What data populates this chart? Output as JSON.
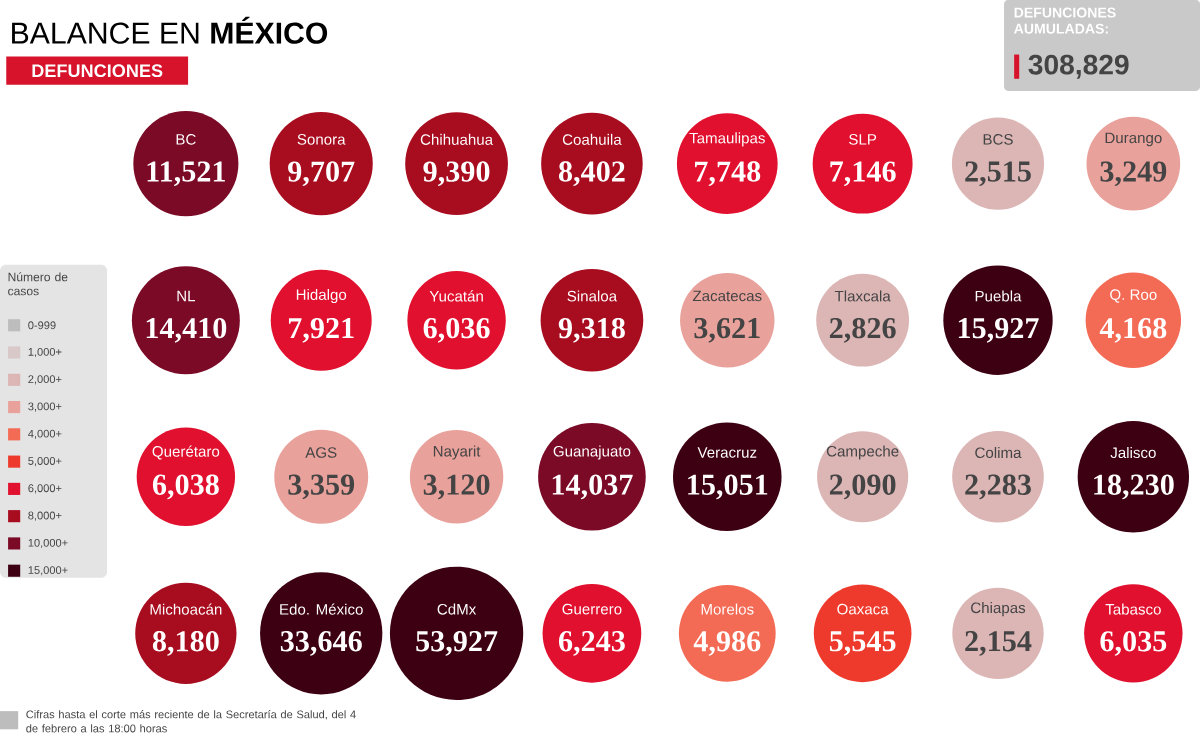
{
  "chart_data": {
    "type": "other",
    "title": "BALANCE EN **MÉXICO**",
    "subtitle": "DEFUNCIONES",
    "legend_title": "Número de casos",
    "legend": "left",
    "categories": [
      "BC",
      "Sonora",
      "Chihuahua",
      "Coahuila",
      "Tamaulipas",
      "SLP",
      "BCS",
      "Durango",
      "NL",
      "Hidalgo",
      "Yucatán",
      "Sinaloa",
      "Zacatecas",
      "Tlaxcala",
      "Puebla",
      "Q. Roo",
      "Querétaro",
      "AGS",
      "Nayarit",
      "Guanajuato",
      "Veracruz",
      "Campeche",
      "Colima",
      "Jalisco",
      "Michoacán",
      "Edo. México",
      "CdMx",
      "Guerrero",
      "Morelos",
      "Oaxaca",
      "Chiapas",
      "Tabasco"
    ],
    "series": [
      {
        "name": "0-999",
        "color": "#bdbdbd",
        "values": [
          null,
          null,
          null,
          null,
          null,
          null,
          null,
          null,
          null,
          null,
          null,
          null,
          null,
          null,
          null,
          null,
          null,
          null,
          null,
          null,
          null,
          null,
          null,
          null,
          null,
          null,
          null,
          null,
          null,
          null,
          null,
          null
        ]
      },
      {
        "name": "1,000+",
        "color": "#d8c8c8",
        "values": [
          null,
          null,
          null,
          null,
          null,
          null,
          null,
          null,
          null,
          null,
          null,
          null,
          null,
          null,
          null,
          null,
          null,
          null,
          null,
          null,
          null,
          null,
          null,
          null,
          null,
          null,
          null,
          null,
          null,
          null,
          null,
          null
        ]
      },
      {
        "name": "2,000+",
        "color": "#dcb5b5",
        "values": [
          null,
          null,
          null,
          null,
          null,
          null,
          2515,
          null,
          null,
          null,
          null,
          null,
          null,
          2826,
          null,
          null,
          null,
          null,
          null,
          null,
          null,
          2090,
          2283,
          null,
          null,
          null,
          null,
          null,
          null,
          null,
          2154,
          null
        ],
        "value_labels": [
          null,
          null,
          null,
          null,
          null,
          null,
          "2,515",
          null,
          null,
          null,
          null,
          null,
          null,
          "2,826",
          null,
          null,
          null,
          null,
          null,
          null,
          null,
          "2,090",
          "2,283",
          null,
          null,
          null,
          null,
          null,
          null,
          null,
          "2,154",
          null
        ]
      },
      {
        "name": "3,000+",
        "color": "#e9a19b",
        "values": [
          null,
          null,
          null,
          null,
          null,
          null,
          null,
          3249,
          null,
          null,
          null,
          null,
          3621,
          null,
          null,
          null,
          null,
          3359,
          3120,
          null,
          null,
          null,
          null,
          null,
          null,
          null,
          null,
          null,
          null,
          null,
          null,
          null
        ],
        "value_labels": [
          null,
          null,
          null,
          null,
          null,
          null,
          null,
          "3,249",
          null,
          null,
          null,
          null,
          "3,621",
          null,
          null,
          null,
          null,
          "3,359",
          "3,120",
          null,
          null,
          null,
          null,
          null,
          null,
          null,
          null,
          null,
          null,
          null,
          null,
          null
        ]
      },
      {
        "name": "4,000+",
        "color": "#f36a55",
        "values": [
          null,
          null,
          null,
          null,
          null,
          null,
          null,
          null,
          null,
          null,
          null,
          null,
          null,
          null,
          null,
          4168,
          null,
          null,
          null,
          null,
          null,
          null,
          null,
          null,
          null,
          null,
          null,
          null,
          4986,
          null,
          null,
          null
        ],
        "value_labels": [
          null,
          null,
          null,
          null,
          null,
          null,
          null,
          null,
          null,
          null,
          null,
          null,
          null,
          null,
          null,
          "4,168",
          null,
          null,
          null,
          null,
          null,
          null,
          null,
          null,
          null,
          null,
          null,
          null,
          "4,986",
          null,
          null,
          null
        ]
      },
      {
        "name": "5,000+",
        "color": "#ee3a2c",
        "values": [
          null,
          null,
          null,
          null,
          null,
          null,
          null,
          null,
          null,
          null,
          null,
          null,
          null,
          null,
          null,
          null,
          null,
          null,
          null,
          null,
          null,
          null,
          null,
          null,
          null,
          null,
          null,
          null,
          null,
          5545,
          null,
          null
        ],
        "value_labels": [
          null,
          null,
          null,
          null,
          null,
          null,
          null,
          null,
          null,
          null,
          null,
          null,
          null,
          null,
          null,
          null,
          null,
          null,
          null,
          null,
          null,
          null,
          null,
          null,
          null,
          null,
          null,
          null,
          null,
          "5,545",
          null,
          null
        ]
      },
      {
        "name": "6,000+",
        "color": "#e0102e",
        "values": [
          null,
          null,
          null,
          null,
          7748,
          7146,
          null,
          null,
          null,
          7921,
          6036,
          null,
          null,
          null,
          null,
          null,
          6038,
          null,
          null,
          null,
          null,
          null,
          null,
          null,
          null,
          null,
          null,
          6243,
          null,
          null,
          null,
          6035
        ],
        "value_labels": [
          null,
          null,
          null,
          null,
          "7,748",
          "7,146",
          null,
          null,
          null,
          "7,921",
          "6,036",
          null,
          null,
          null,
          null,
          null,
          "6,038",
          null,
          null,
          null,
          null,
          null,
          null,
          null,
          null,
          null,
          null,
          "6,243",
          null,
          null,
          null,
          "6,035"
        ]
      },
      {
        "name": "8,000+",
        "color": "#a80c1f",
        "values": [
          null,
          9707,
          9390,
          8402,
          null,
          null,
          null,
          null,
          null,
          null,
          null,
          9318,
          null,
          null,
          null,
          null,
          null,
          null,
          null,
          null,
          null,
          null,
          null,
          null,
          8180,
          null,
          null,
          null,
          null,
          null,
          null,
          null
        ],
        "value_labels": [
          null,
          "9,707",
          "9,390",
          "8,402",
          null,
          null,
          null,
          null,
          null,
          null,
          null,
          "9,318",
          null,
          null,
          null,
          null,
          null,
          null,
          null,
          null,
          null,
          null,
          null,
          null,
          "8,180",
          null,
          null,
          null,
          null,
          null,
          null,
          null
        ]
      },
      {
        "name": "10,000+",
        "color": "#7a0a26",
        "values": [
          11521,
          null,
          null,
          null,
          null,
          null,
          null,
          null,
          14410,
          null,
          null,
          null,
          null,
          null,
          null,
          null,
          null,
          null,
          null,
          14037,
          null,
          null,
          null,
          null,
          null,
          null,
          null,
          null,
          null,
          null,
          null,
          null
        ],
        "value_labels": [
          "11,521",
          null,
          null,
          null,
          null,
          null,
          null,
          null,
          "14,410",
          null,
          null,
          null,
          null,
          null,
          null,
          null,
          null,
          null,
          null,
          "14,037",
          null,
          null,
          null,
          null,
          null,
          null,
          null,
          null,
          null,
          null,
          null,
          null
        ]
      },
      {
        "name": "15,000+",
        "color": "#3d0012",
        "values": [
          null,
          null,
          null,
          null,
          null,
          null,
          null,
          null,
          null,
          null,
          null,
          null,
          null,
          null,
          15927,
          null,
          null,
          null,
          null,
          null,
          15051,
          null,
          null,
          18230,
          null,
          33646,
          53927,
          null,
          null,
          null,
          null,
          null
        ],
        "value_labels": [
          null,
          null,
          null,
          null,
          null,
          null,
          null,
          null,
          null,
          null,
          null,
          null,
          null,
          null,
          "15,927",
          null,
          null,
          null,
          null,
          null,
          "15,051",
          null,
          null,
          "18,230",
          null,
          "33,646",
          "53,927",
          null,
          null,
          null,
          null,
          null
        ]
      }
    ],
    "annotations": [
      "DEFUNCIONES AUMULADAS:",
      "308,829",
      "Cifras hasta el corte más reciente de la Secretaría de Salud, del 4 de febrero a las 18:00 horas"
    ]
  }
}
